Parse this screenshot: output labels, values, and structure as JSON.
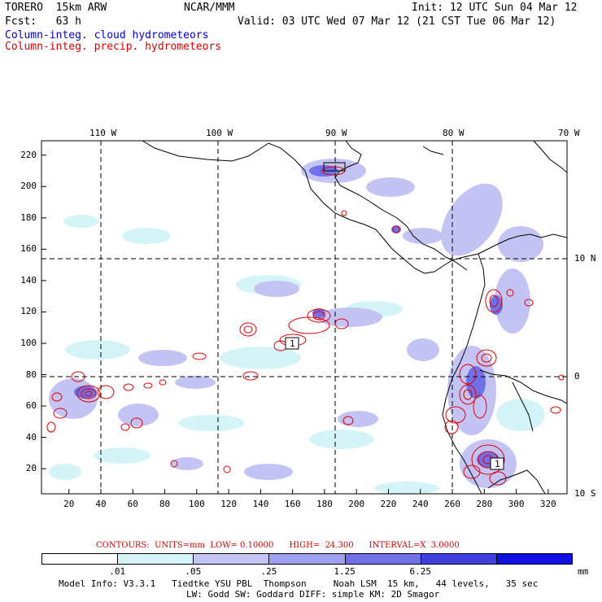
{
  "header": {
    "model": "TORERO  15km ARW",
    "org": "NCAR/MMM",
    "init": "Init: 12 UTC Sun 04 Mar 12",
    "fcst": "Fcst:   63 h",
    "valid": "Valid: 03 UTC Wed 07 Mar 12 (21 CST Tue 06 Mar 12)",
    "field1": "Column-integ. cloud hydrometeors",
    "field2": "Column-integ. precip. hydrometeors"
  },
  "map": {
    "lon_labels": [
      "110 W",
      "100 W",
      "90 W",
      "80 W",
      "70 W"
    ],
    "lat_labels": [
      "10 N",
      "0",
      "10 S"
    ],
    "x_ticks": [
      "20",
      "40",
      "60",
      "80",
      "100",
      "120",
      "140",
      "160",
      "180",
      "200",
      "220",
      "240",
      "260",
      "280",
      "300",
      "320"
    ],
    "y_ticks": [
      "220",
      "200",
      "180",
      "160",
      "140",
      "120",
      "100",
      "80",
      "60",
      "40",
      "20"
    ],
    "box_labels": [
      "1",
      "1"
    ]
  },
  "contours_line": "CONTOURS:  UNITS=mm  LOW= 0.10000      HIGH=  24.300      INTERVAL=X  3.0000",
  "colorbar": {
    "labels": [
      ".01",
      ".05",
      ".25",
      "1.25",
      "6.25"
    ],
    "unit": "mm",
    "colors": [
      "#ffffff",
      "#d4f4f8",
      "#c4c4f4",
      "#a0a0f0",
      "#7070e8",
      "#4040e0",
      "#1010e0"
    ]
  },
  "footer": {
    "line1": "Model Info: V3.3.1   Tiedtke YSU PBL  Thompson     Noah LSM  15 km,   44 levels,   35 sec",
    "line2": "LW: Godd SW: Goddard DIFF: simple KM: 2D Smagor"
  }
}
